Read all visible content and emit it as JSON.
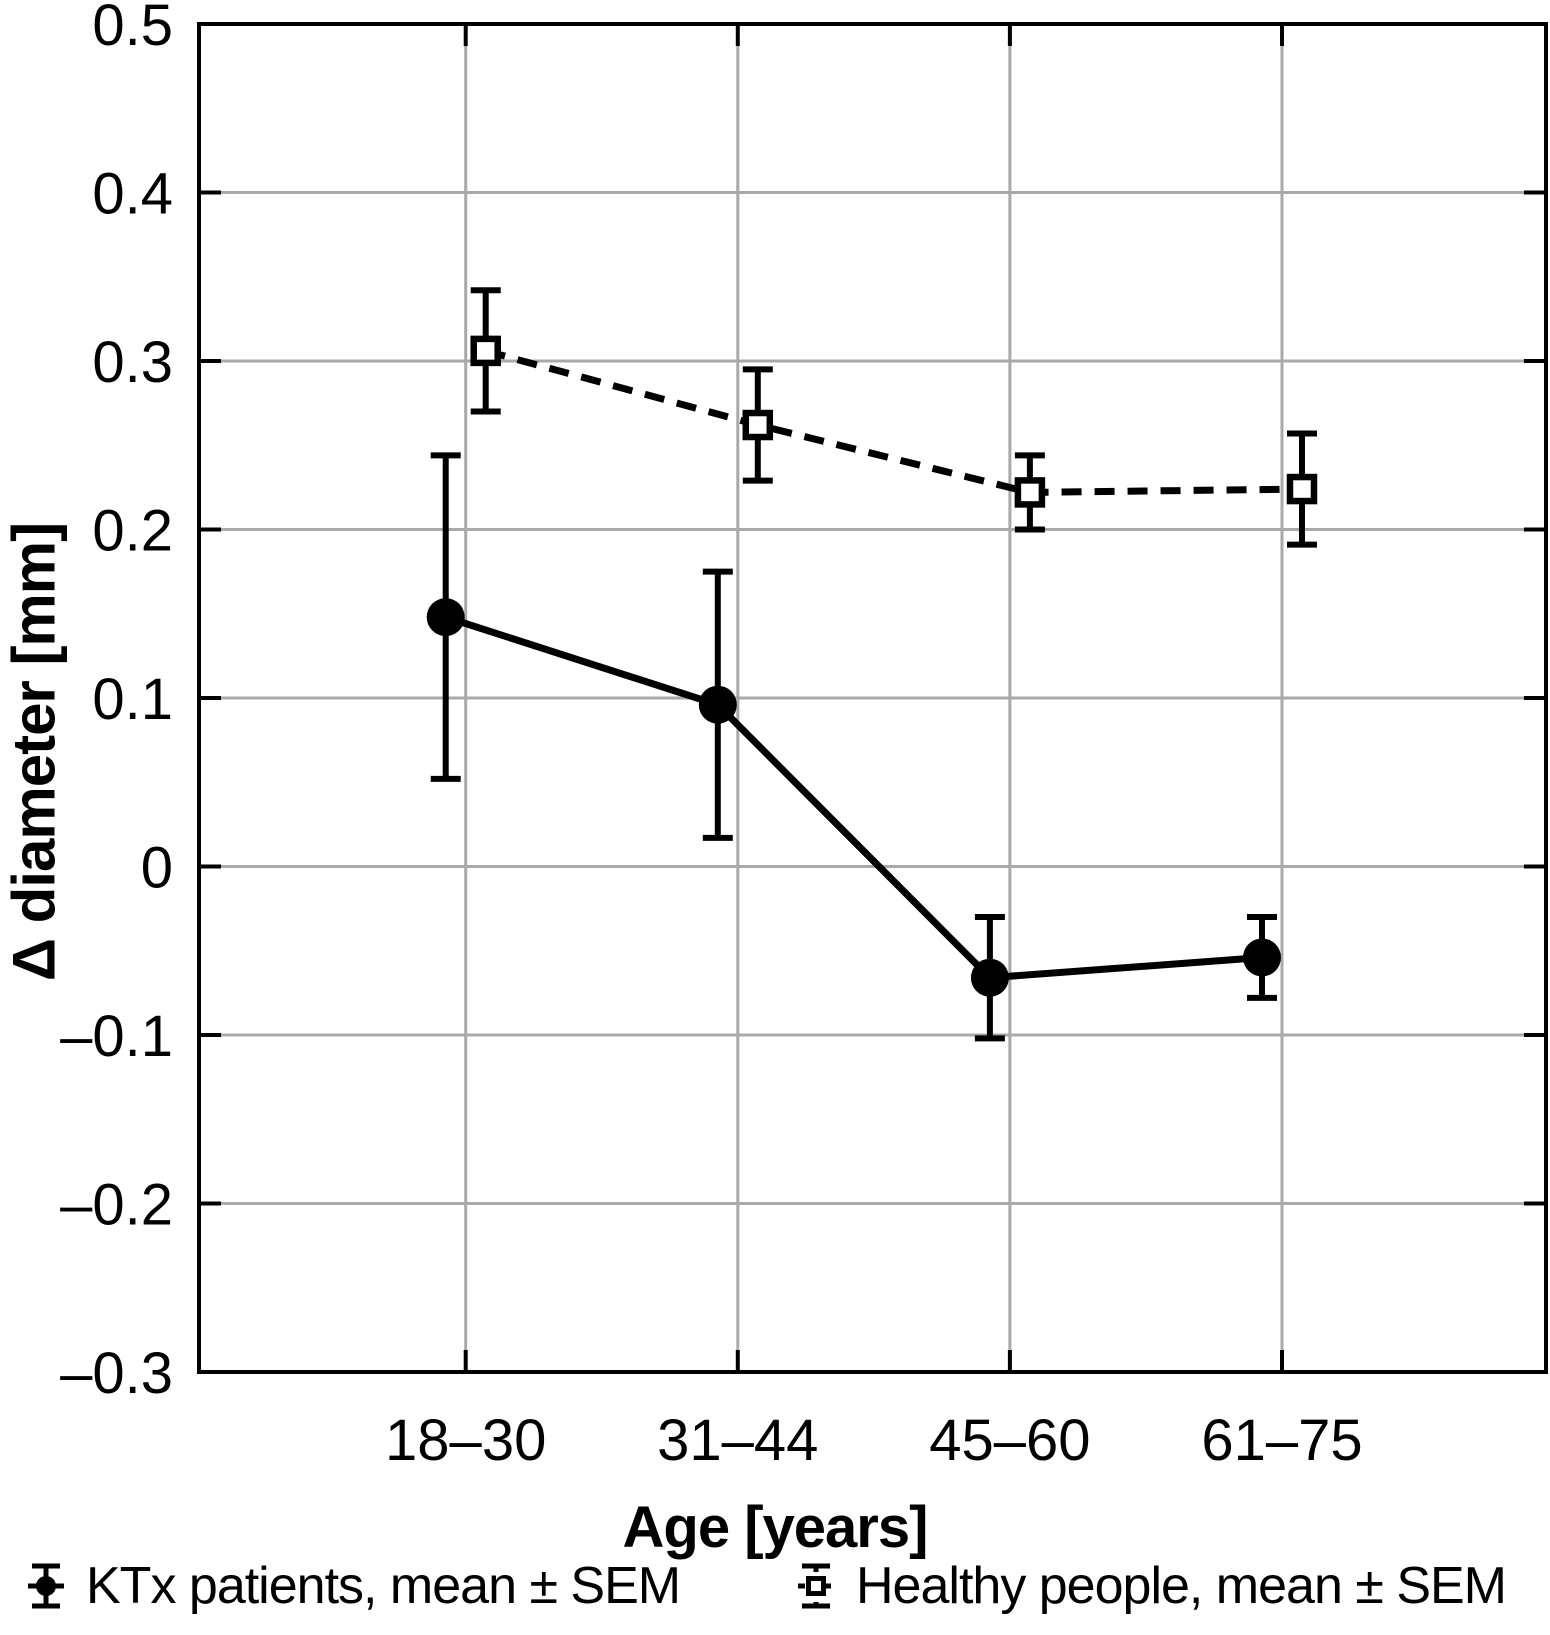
{
  "figure": {
    "background": "#ffffff"
  },
  "chart_data": {
    "type": "line",
    "title": "",
    "xlabel": "Age [years]",
    "ylabel": "Δ diameter [mm]",
    "categories": [
      "18–30",
      "31–44",
      "45–60",
      "61–75"
    ],
    "ylim": [
      -0.3,
      0.5
    ],
    "yticks": [
      0.5,
      0.4,
      0.3,
      0.2,
      0.1,
      0,
      -0.1,
      -0.2,
      -0.3
    ],
    "ytick_labels": [
      "0.5",
      "0.4",
      "0.3",
      "0.2",
      "0.1",
      "0",
      "–0.1",
      "–0.2",
      "–0.3"
    ],
    "grid": true,
    "legend_position": "bottom",
    "axis_color": "#000000",
    "grid_color": "#a9a9a9",
    "marker_fill": "#ffffff",
    "series": [
      {
        "key": "ktx",
        "name": "KTx patients, mean ± SEM",
        "marker": "filled-circle",
        "line_style": "solid",
        "values": [
          0.148,
          0.096,
          -0.066,
          -0.054
        ],
        "sem": [
          0.096,
          0.079,
          0.036,
          0.024
        ]
      },
      {
        "key": "healthy",
        "name": "Healthy people, mean ± SEM",
        "marker": "open-square",
        "line_style": "dashed",
        "values": [
          0.306,
          0.262,
          0.222,
          0.224
        ],
        "sem": [
          0.036,
          0.033,
          0.022,
          0.033
        ]
      }
    ]
  }
}
